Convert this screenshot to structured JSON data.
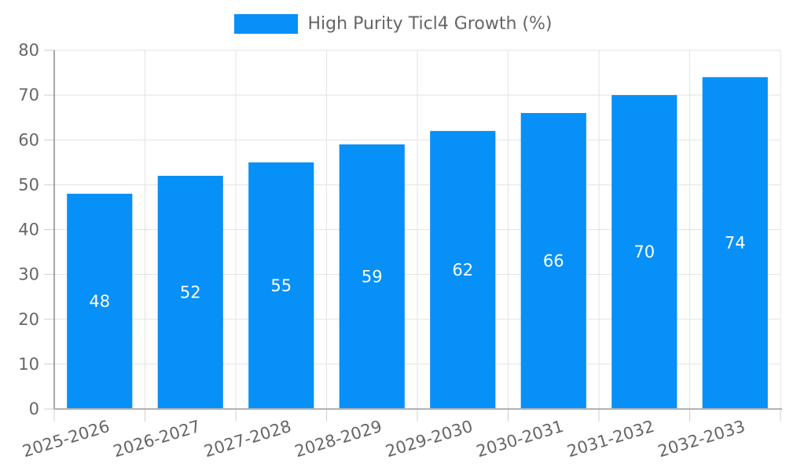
{
  "chart_data": {
    "type": "bar",
    "title": "",
    "legend": "High Purity Ticl4 Growth (%)",
    "legend_position": "top",
    "categories": [
      "2025-2026",
      "2026-2027",
      "2027-2028",
      "2028-2029",
      "2029-2030",
      "2030-2031",
      "2031-2032",
      "2032-2033"
    ],
    "series": [
      {
        "name": "High Purity Ticl4 Growth (%)",
        "values": [
          48,
          52,
          55,
          59,
          62,
          66,
          70,
          74
        ]
      }
    ],
    "xlabel": "",
    "ylabel": "",
    "ylim": [
      0,
      80
    ],
    "ytick_step": 10,
    "yticks": [
      0,
      10,
      20,
      30,
      40,
      50,
      60,
      70,
      80
    ],
    "grid": true,
    "show_value_labels": true
  },
  "colors": {
    "bar": "#0790f8",
    "grid": "#e3e3e3",
    "tick": "#cfcfcf",
    "axis_y": "#8a8a8a",
    "axis_x": "#b3b3b3",
    "text": "#666666",
    "value_label": "#ffffff",
    "background": "#ffffff"
  }
}
